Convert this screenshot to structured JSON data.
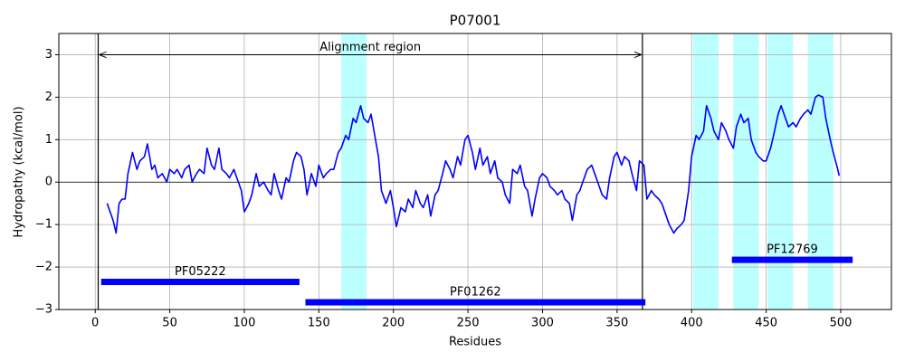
{
  "chart_data": {
    "type": "line",
    "title": "P07001",
    "x_label": "Residues",
    "y_label": "Hydropathy (kcal/mol)",
    "xlim": [
      -24.4,
      534
    ],
    "ylim": [
      -3,
      3.5
    ],
    "xticks": [
      0,
      50,
      100,
      150,
      200,
      250,
      300,
      350,
      400,
      450,
      500
    ],
    "yticks": [
      {
        "value": -3,
        "label": "−3"
      },
      {
        "value": -2,
        "label": "−2"
      },
      {
        "value": -1,
        "label": "−1"
      },
      0,
      1,
      2,
      3
    ],
    "grid": true,
    "zero_line": 0,
    "x": [
      8,
      10,
      12,
      14,
      16,
      18,
      20,
      22,
      25,
      28,
      30,
      33,
      35,
      38,
      40,
      42,
      45,
      48,
      50,
      53,
      55,
      58,
      60,
      63,
      65,
      68,
      70,
      73,
      75,
      78,
      80,
      83,
      85,
      88,
      90,
      93,
      95,
      98,
      100,
      103,
      105,
      108,
      110,
      113,
      116,
      118,
      120,
      123,
      125,
      128,
      130,
      133,
      135,
      138,
      140,
      142,
      145,
      148,
      150,
      153,
      155,
      158,
      160,
      163,
      165,
      168,
      170,
      173,
      175,
      178,
      180,
      183,
      185,
      188,
      190,
      192,
      195,
      198,
      200,
      202,
      205,
      208,
      210,
      213,
      215,
      218,
      220,
      223,
      225,
      228,
      230,
      233,
      235,
      238,
      240,
      243,
      245,
      248,
      250,
      253,
      255,
      258,
      260,
      263,
      265,
      268,
      270,
      273,
      275,
      278,
      280,
      283,
      285,
      288,
      290,
      293,
      295,
      298,
      300,
      303,
      305,
      308,
      310,
      313,
      315,
      318,
      320,
      323,
      325,
      328,
      330,
      333,
      335,
      338,
      340,
      343,
      345,
      348,
      350,
      353,
      355,
      358,
      360,
      363,
      365,
      368,
      370,
      373,
      375,
      378,
      380,
      383,
      385,
      388,
      390,
      393,
      395,
      398,
      400,
      403,
      405,
      408,
      410,
      413,
      415,
      418,
      420,
      423,
      425,
      428,
      430,
      433,
      435,
      438,
      440,
      443,
      445,
      448,
      450,
      453,
      455,
      458,
      460,
      463,
      465,
      468,
      470,
      473,
      475,
      478,
      480,
      483,
      485,
      488,
      490,
      493,
      495,
      498,
      499
    ],
    "series": [
      {
        "color": "#0000ff",
        "values": [
          -0.5,
          -0.7,
          -0.9,
          -1.2,
          -0.5,
          -0.4,
          -0.4,
          0.2,
          0.7,
          0.3,
          0.5,
          0.6,
          0.9,
          0.3,
          0.4,
          0.1,
          0.2,
          0.0,
          0.3,
          0.2,
          0.3,
          0.1,
          0.3,
          0.4,
          0.0,
          0.2,
          0.3,
          0.2,
          0.8,
          0.4,
          0.3,
          0.8,
          0.3,
          0.2,
          0.1,
          0.3,
          0.1,
          -0.2,
          -0.7,
          -0.5,
          -0.3,
          0.2,
          -0.1,
          0.0,
          -0.2,
          -0.3,
          0.2,
          -0.2,
          -0.4,
          0.1,
          0.0,
          0.5,
          0.7,
          0.6,
          0.3,
          -0.3,
          0.2,
          -0.1,
          0.4,
          0.1,
          0.2,
          0.3,
          0.3,
          0.7,
          0.8,
          1.1,
          1.0,
          1.5,
          1.4,
          1.8,
          1.5,
          1.4,
          1.6,
          1.0,
          0.6,
          -0.2,
          -0.5,
          -0.2,
          -0.6,
          -1.05,
          -0.6,
          -0.7,
          -0.4,
          -0.6,
          -0.2,
          -0.5,
          -0.6,
          -0.3,
          -0.8,
          -0.3,
          -0.2,
          0.2,
          0.5,
          0.3,
          0.1,
          0.6,
          0.4,
          1.0,
          1.1,
          0.7,
          0.3,
          0.8,
          0.4,
          0.6,
          0.2,
          0.5,
          0.1,
          0.0,
          -0.3,
          -0.5,
          0.3,
          0.2,
          0.4,
          -0.1,
          -0.2,
          -0.8,
          -0.4,
          0.1,
          0.2,
          0.1,
          -0.1,
          -0.2,
          -0.3,
          -0.2,
          -0.4,
          -0.5,
          -0.9,
          -0.3,
          -0.2,
          0.1,
          0.3,
          0.4,
          0.2,
          -0.1,
          -0.3,
          -0.4,
          0.1,
          0.6,
          0.7,
          0.4,
          0.6,
          0.5,
          0.2,
          -0.2,
          0.5,
          0.4,
          -0.4,
          -0.2,
          -0.3,
          -0.4,
          -0.5,
          -0.8,
          -1.0,
          -1.2,
          -1.1,
          -1.0,
          -0.9,
          -0.2,
          0.6,
          1.1,
          1.0,
          1.2,
          1.8,
          1.5,
          1.2,
          1.0,
          1.4,
          1.2,
          1.0,
          0.8,
          1.3,
          1.6,
          1.4,
          1.5,
          1.0,
          0.7,
          0.6,
          0.5,
          0.5,
          0.8,
          1.1,
          1.6,
          1.8,
          1.5,
          1.3,
          1.4,
          1.3,
          1.5,
          1.6,
          1.7,
          1.6,
          2.0,
          2.05,
          2.0,
          1.5,
          1.0,
          0.7,
          0.3,
          0.15
        ]
      }
    ],
    "region_color": "#bbffff",
    "shaded_regions": [
      {
        "start": 165,
        "end": 182
      },
      {
        "start": 401,
        "end": 418
      },
      {
        "start": 428,
        "end": 445
      },
      {
        "start": 451,
        "end": 468
      },
      {
        "start": 478,
        "end": 495
      }
    ],
    "domain_color": "#0000ff",
    "domains": [
      {
        "label": "PF05222",
        "start": 4,
        "end": 137,
        "y": -2.35
      },
      {
        "label": "PF01262",
        "start": 141,
        "end": 369,
        "y": -2.83
      },
      {
        "label": "PF12769",
        "start": 427,
        "end": 508,
        "y": -1.83
      }
    ],
    "alignment": {
      "label": "Alignment region",
      "start": 2,
      "end": 367,
      "y": 3
    }
  }
}
